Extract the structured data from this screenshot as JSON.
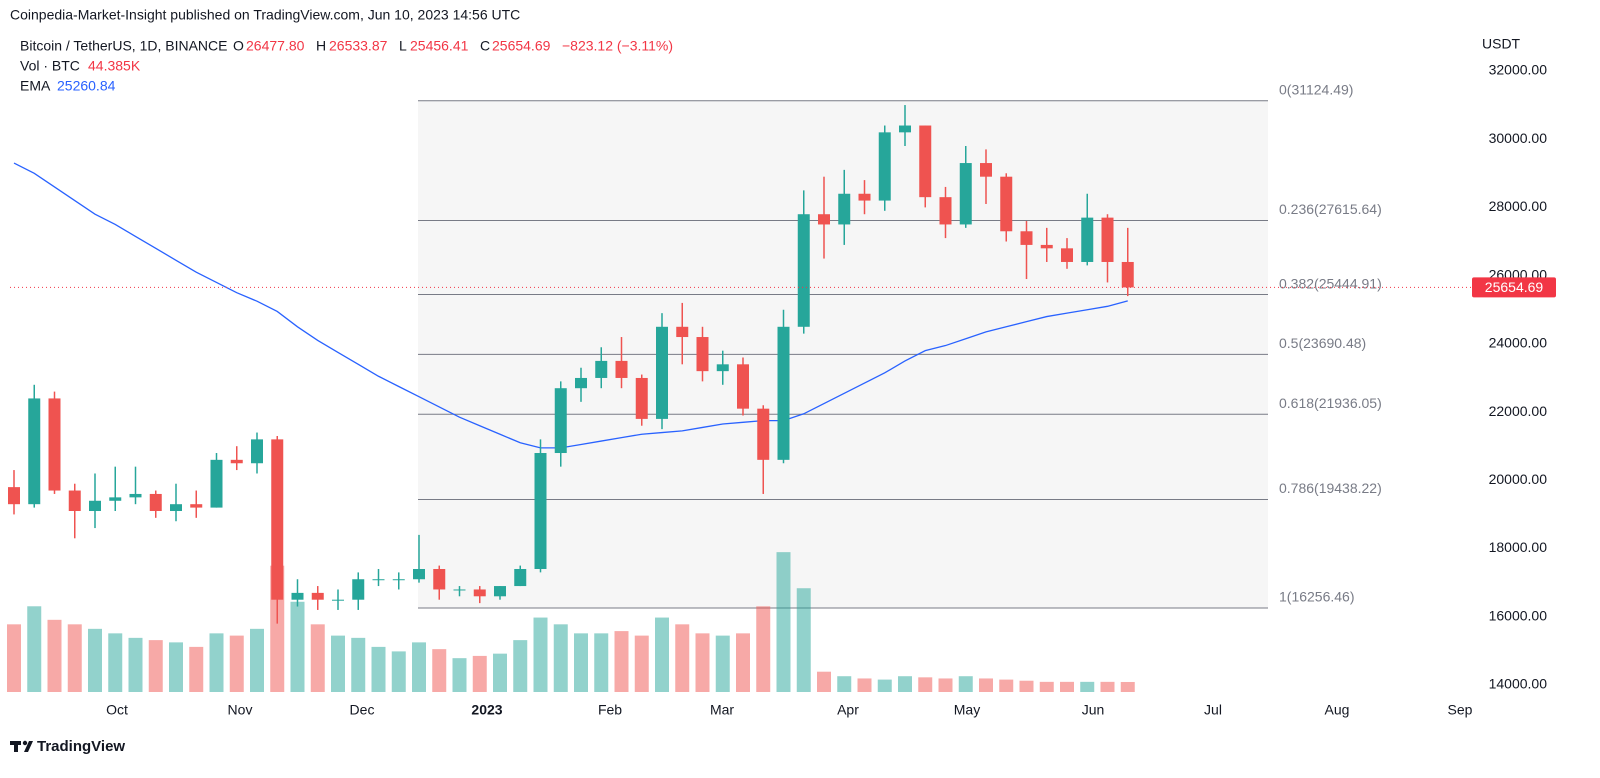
{
  "header": {
    "published": "Coinpedia-Market-Insight published on TradingView.com, Jun 10, 2023 14:56 UTC",
    "symbol": "Bitcoin / TetherUS, 1D, BINANCE",
    "o_key": "O",
    "o": "26477.80",
    "h_key": "H",
    "h": "26533.87",
    "l_key": "L",
    "l": "25456.41",
    "c_key": "C",
    "change": "−823.12 (−3.11%)",
    "vol_key": "Vol · BTC",
    "vol": "44.385K",
    "ema_key": "EMA",
    "ema": "25260.84",
    "currency": "USDT"
  },
  "footer": {
    "brand": "TradingView"
  },
  "chart_data": {
    "type": "candlestick",
    "up_color": "#26a69a",
    "down_color": "#ef5350",
    "open": [
      19800,
      19300,
      22400,
      19700,
      19100,
      19400,
      19500,
      19600,
      19100,
      19300,
      19200,
      20600,
      20500,
      21200,
      16500,
      16700,
      16500,
      16500,
      17100,
      17100,
      17100,
      17400,
      16800,
      16800,
      16600,
      16900,
      17400,
      20800,
      22700,
      23000,
      23500,
      23000,
      21800,
      24500,
      24200,
      23200,
      23400,
      22100,
      20600,
      24500,
      27800,
      27500,
      28400,
      28200,
      30200,
      30400,
      28300,
      27500,
      29300,
      28900,
      27300,
      26900,
      26800,
      26400,
      27700,
      26400
    ],
    "high": [
      20300,
      22800,
      22600,
      19900,
      20200,
      20400,
      20400,
      19700,
      19900,
      19700,
      20800,
      21000,
      21400,
      21300,
      17100,
      16900,
      16800,
      17300,
      17400,
      17300,
      18400,
      17500,
      16900,
      16900,
      16900,
      17500,
      21200,
      22900,
      23300,
      23900,
      24200,
      23100,
      24900,
      25200,
      24500,
      23800,
      23600,
      22200,
      25000,
      28500,
      28900,
      29100,
      28800,
      30400,
      31000,
      30400,
      28600,
      29800,
      29700,
      29000,
      27600,
      27400,
      27100,
      28400,
      27800,
      27400
    ],
    "low": [
      19000,
      19200,
      19600,
      18300,
      18600,
      19100,
      19300,
      18900,
      18800,
      18900,
      19200,
      20300,
      20200,
      15800,
      16300,
      16200,
      16200,
      16200,
      16900,
      16800,
      17000,
      16500,
      16600,
      16400,
      16500,
      16900,
      17300,
      20400,
      22300,
      22700,
      22700,
      21600,
      21500,
      23400,
      22900,
      22800,
      21900,
      19600,
      20500,
      24300,
      26500,
      26900,
      27800,
      27900,
      29800,
      28000,
      27100,
      27400,
      28100,
      27000,
      25900,
      26400,
      26200,
      26300,
      25800,
      25400
    ],
    "close": [
      19300,
      22400,
      19700,
      19100,
      19400,
      19500,
      19600,
      19100,
      19300,
      19200,
      20600,
      20500,
      21200,
      16500,
      16700,
      16500,
      16500,
      17100,
      17100,
      17100,
      17400,
      16800,
      16800,
      16600,
      16900,
      17400,
      20800,
      22700,
      23000,
      23500,
      23000,
      21800,
      24500,
      24200,
      23200,
      23400,
      22100,
      20600,
      24500,
      27800,
      27500,
      28400,
      28200,
      30200,
      30400,
      28300,
      27500,
      29300,
      28900,
      27300,
      26900,
      26800,
      26400,
      27700,
      26400,
      25654.69
    ],
    "volume": [
      300,
      380,
      320,
      300,
      280,
      260,
      240,
      230,
      220,
      200,
      260,
      250,
      280,
      560,
      400,
      300,
      250,
      240,
      200,
      180,
      220,
      190,
      150,
      160,
      170,
      230,
      330,
      300,
      260,
      260,
      270,
      250,
      330,
      300,
      260,
      250,
      260,
      380,
      620,
      460,
      90,
      70,
      60,
      55,
      70,
      65,
      60,
      70,
      60,
      55,
      50,
      45,
      45,
      45,
      45,
      44.385
    ],
    "volume_ylim": [
      0,
      1330
    ],
    "ema": {
      "name": "EMA",
      "color": "#2962ff",
      "values": [
        29300,
        29000,
        28600,
        28200,
        27800,
        27500,
        27150,
        26800,
        26450,
        26100,
        25800,
        25500,
        25250,
        24950,
        24500,
        24100,
        23750,
        23400,
        23050,
        22750,
        22450,
        22150,
        21850,
        21600,
        21350,
        21100,
        20950,
        20950,
        21050,
        21150,
        21250,
        21350,
        21400,
        21450,
        21550,
        21650,
        21700,
        21750,
        21750,
        21950,
        22250,
        22550,
        22850,
        23150,
        23500,
        23800,
        23950,
        24150,
        24350,
        24500,
        24650,
        24800,
        24900,
        25000,
        25100,
        25260.84
      ]
    },
    "last_price": {
      "value": 25654.69,
      "label": "25654.69"
    },
    "fib_levels": [
      {
        "value": 31124.49,
        "label": "0(31124.49)"
      },
      {
        "value": 27615.64,
        "label": "0.236(27615.64)"
      },
      {
        "value": 25444.91,
        "label": "0.382(25444.91)"
      },
      {
        "value": 23690.48,
        "label": "0.5(23690.48)"
      },
      {
        "value": 21936.05,
        "label": "0.618(21936.05)"
      },
      {
        "value": 19438.22,
        "label": "0.786(19438.22)"
      },
      {
        "value": 16256.46,
        "label": "1(16256.46)"
      }
    ],
    "ylim": [
      13560,
      33200
    ],
    "yticks": [
      {
        "value": 32000,
        "label": "32000.00"
      },
      {
        "value": 30000,
        "label": "30000.00"
      },
      {
        "value": 28000,
        "label": "28000.00"
      },
      {
        "value": 26000,
        "label": "26000.00"
      },
      {
        "value": 24000,
        "label": "24000.00"
      },
      {
        "value": 22000,
        "label": "22000.00"
      },
      {
        "value": 20000,
        "label": "20000.00"
      },
      {
        "value": 18000,
        "label": "18000.00"
      },
      {
        "value": 16000,
        "label": "16000.00"
      },
      {
        "value": 14000,
        "label": "14000.00"
      }
    ],
    "x_labels": [
      "Oct",
      "Nov",
      "Dec",
      "2023",
      "Feb",
      "Mar",
      "Apr",
      "May",
      "Jun",
      "Jul",
      "Aug",
      "Sep"
    ]
  }
}
